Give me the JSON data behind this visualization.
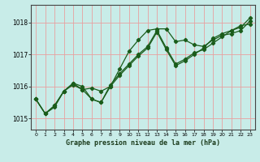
{
  "title": "",
  "xlabel": "Graphe pression niveau de la mer (hPa)",
  "ylabel": "",
  "bg_color": "#c8ece8",
  "grid_color": "#e8a0a0",
  "line_color": "#1a5c1a",
  "xlim": [
    -0.5,
    23.5
  ],
  "ylim": [
    1014.65,
    1018.55
  ],
  "yticks": [
    1015,
    1016,
    1017,
    1018
  ],
  "xticks": [
    0,
    1,
    2,
    3,
    4,
    5,
    6,
    7,
    8,
    9,
    10,
    11,
    12,
    13,
    14,
    15,
    16,
    17,
    18,
    19,
    20,
    21,
    22,
    23
  ],
  "line1_x": [
    0,
    1,
    2,
    3,
    4,
    5,
    6,
    7,
    8,
    9,
    10,
    11,
    12,
    13,
    14,
    15,
    16,
    17,
    18,
    19,
    20,
    21,
    22,
    23
  ],
  "line1_y": [
    1015.6,
    1015.15,
    1015.35,
    1015.85,
    1016.05,
    1015.9,
    1015.6,
    1015.5,
    1016.05,
    1016.4,
    1016.7,
    1017.0,
    1017.25,
    1017.75,
    1017.2,
    1016.7,
    1016.85,
    1017.05,
    1017.15,
    1017.35,
    1017.55,
    1017.75,
    1017.9,
    1017.95
  ],
  "line2_x": [
    0,
    1,
    2,
    3,
    4,
    5,
    6,
    7,
    8,
    9,
    10,
    11,
    12,
    13,
    14,
    15,
    16,
    17,
    18,
    19,
    20,
    21,
    22,
    23
  ],
  "line2_y": [
    1015.6,
    1015.15,
    1015.4,
    1015.85,
    1016.1,
    1015.9,
    1015.95,
    1015.85,
    1016.0,
    1016.55,
    1017.1,
    1017.45,
    1017.75,
    1017.8,
    1017.8,
    1017.4,
    1017.45,
    1017.3,
    1017.25,
    1017.45,
    1017.6,
    1017.65,
    1017.75,
    1018.05
  ],
  "line3_x": [
    0,
    1,
    2,
    3,
    4,
    5,
    6,
    7,
    8,
    9,
    10,
    11,
    12,
    13,
    14,
    15,
    16,
    17,
    18,
    19,
    20,
    21,
    22,
    23
  ],
  "line3_y": [
    1015.6,
    1015.15,
    1015.4,
    1015.85,
    1016.1,
    1016.0,
    1015.6,
    1015.5,
    1016.0,
    1016.35,
    1016.65,
    1016.95,
    1017.2,
    1017.7,
    1017.15,
    1016.65,
    1016.8,
    1017.0,
    1017.2,
    1017.5,
    1017.65,
    1017.75,
    1017.85,
    1018.15
  ]
}
